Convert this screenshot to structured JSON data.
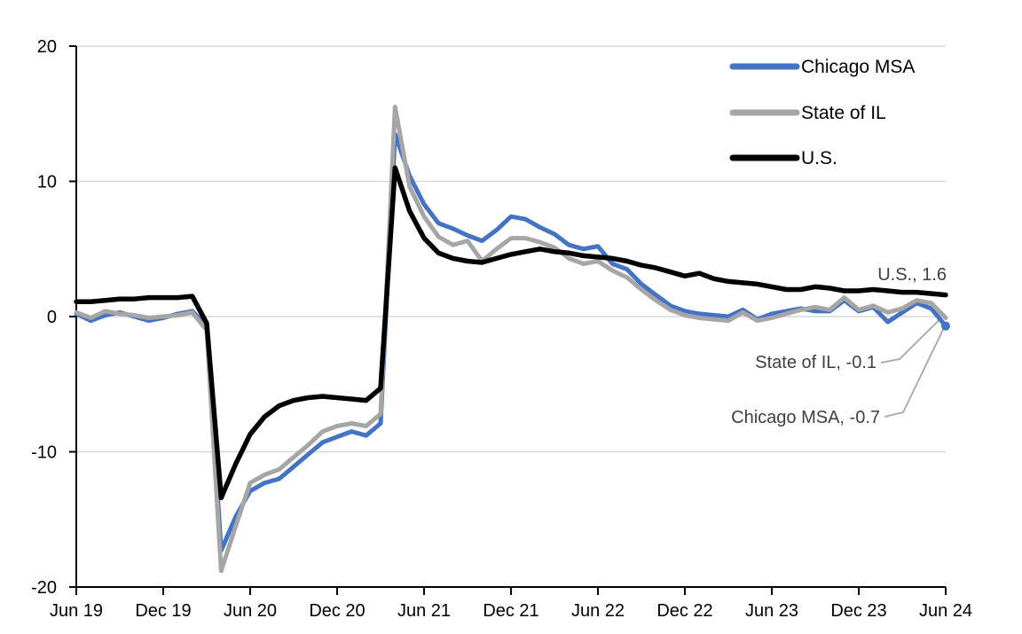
{
  "chart_data": {
    "type": "line",
    "title": "",
    "xlabel": "",
    "ylabel": "",
    "ylim": [
      -20,
      20
    ],
    "y_ticks": [
      20,
      10,
      0,
      -10,
      -20
    ],
    "x_tick_labels": [
      "Jun 19",
      "Dec 19",
      "Jun 20",
      "Dec 20",
      "Jun 21",
      "Dec 21",
      "Jun 22",
      "Dec 22",
      "Jun 23",
      "Dec 23",
      "Jun 24"
    ],
    "grid": "horizontal",
    "legend_position": "top-right-inside",
    "x_labels": [
      "Jun-19",
      "Jul-19",
      "Aug-19",
      "Sep-19",
      "Oct-19",
      "Nov-19",
      "Dec-19",
      "Jan-20",
      "Feb-20",
      "Mar-20",
      "Apr-20",
      "May-20",
      "Jun-20",
      "Jul-20",
      "Aug-20",
      "Sep-20",
      "Oct-20",
      "Nov-20",
      "Dec-20",
      "Jan-21",
      "Feb-21",
      "Mar-21",
      "Apr-21",
      "May-21",
      "Jun-21",
      "Jul-21",
      "Aug-21",
      "Sep-21",
      "Oct-21",
      "Nov-21",
      "Dec-21",
      "Jan-22",
      "Feb-22",
      "Mar-22",
      "Apr-22",
      "May-22",
      "Jun-22",
      "Jul-22",
      "Aug-22",
      "Sep-22",
      "Oct-22",
      "Nov-22",
      "Dec-22",
      "Jan-23",
      "Feb-23",
      "Mar-23",
      "Apr-23",
      "May-23",
      "Jun-23",
      "Jul-23",
      "Aug-23",
      "Sep-23",
      "Oct-23",
      "Nov-23",
      "Dec-23",
      "Jan-24",
      "Feb-24",
      "Mar-24",
      "Apr-24",
      "May-24",
      "Jun-24"
    ],
    "series": [
      {
        "name": "Chicago MSA",
        "color": "#4472C4",
        "end_value": -0.7,
        "values": [
          0.2,
          -0.3,
          0.1,
          0.3,
          0.0,
          -0.3,
          -0.1,
          0.2,
          0.4,
          -0.7,
          -17.3,
          -14.8,
          -12.9,
          -12.3,
          -12.0,
          -11.1,
          -10.2,
          -9.3,
          -8.9,
          -8.5,
          -8.8,
          -7.9,
          13.5,
          10.4,
          8.3,
          6.9,
          6.5,
          6.0,
          5.6,
          6.4,
          7.4,
          7.2,
          6.6,
          6.1,
          5.3,
          5.0,
          5.2,
          3.9,
          3.5,
          2.4,
          1.6,
          0.8,
          0.4,
          0.2,
          0.1,
          0.0,
          0.5,
          -0.2,
          0.2,
          0.4,
          0.6,
          0.4,
          0.4,
          1.2,
          0.4,
          0.7,
          -0.4,
          0.3,
          1.0,
          0.6,
          -0.7
        ]
      },
      {
        "name": "State of IL",
        "color": "#A6A6A6",
        "end_value": -0.1,
        "values": [
          0.3,
          -0.1,
          0.4,
          0.2,
          0.1,
          -0.1,
          0.0,
          0.1,
          0.3,
          -1.0,
          -18.8,
          -15.5,
          -12.3,
          -11.7,
          -11.3,
          -10.4,
          -9.5,
          -8.5,
          -8.1,
          -7.9,
          -8.1,
          -7.2,
          15.5,
          9.6,
          7.4,
          5.9,
          5.3,
          5.6,
          4.1,
          5.0,
          5.8,
          5.8,
          5.5,
          5.1,
          4.3,
          3.9,
          4.1,
          3.4,
          2.9,
          2.0,
          1.2,
          0.5,
          0.1,
          -0.1,
          -0.2,
          -0.3,
          0.3,
          -0.3,
          -0.1,
          0.2,
          0.5,
          0.7,
          0.5,
          1.4,
          0.5,
          0.8,
          0.3,
          0.6,
          1.2,
          1.0,
          -0.1
        ]
      },
      {
        "name": "U.S.",
        "color": "#000000",
        "end_value": 1.6,
        "values": [
          1.1,
          1.1,
          1.2,
          1.3,
          1.3,
          1.4,
          1.4,
          1.4,
          1.5,
          -0.5,
          -13.4,
          -10.9,
          -8.7,
          -7.4,
          -6.6,
          -6.2,
          -6.0,
          -5.9,
          -6.0,
          -6.1,
          -6.2,
          -5.3,
          11.0,
          7.8,
          5.8,
          4.7,
          4.3,
          4.1,
          4.0,
          4.3,
          4.6,
          4.8,
          5.0,
          4.8,
          4.7,
          4.5,
          4.4,
          4.3,
          4.1,
          3.8,
          3.6,
          3.3,
          3.0,
          3.2,
          2.8,
          2.6,
          2.5,
          2.4,
          2.2,
          2.0,
          2.0,
          2.2,
          2.1,
          1.9,
          1.9,
          2.0,
          1.9,
          1.8,
          1.8,
          1.7,
          1.6
        ]
      }
    ],
    "annotations": [
      {
        "text": "U.S., 1.6"
      },
      {
        "text": "State of IL, -0.1"
      },
      {
        "text": "Chicago MSA, -0.7"
      }
    ]
  },
  "colors": {
    "background": "#FFFFFF",
    "gridline": "#D9D9D9",
    "axis": "#000000",
    "tick_label": "#000000",
    "annotation_text": "#404040",
    "leader_line": "#A6A6A6"
  }
}
